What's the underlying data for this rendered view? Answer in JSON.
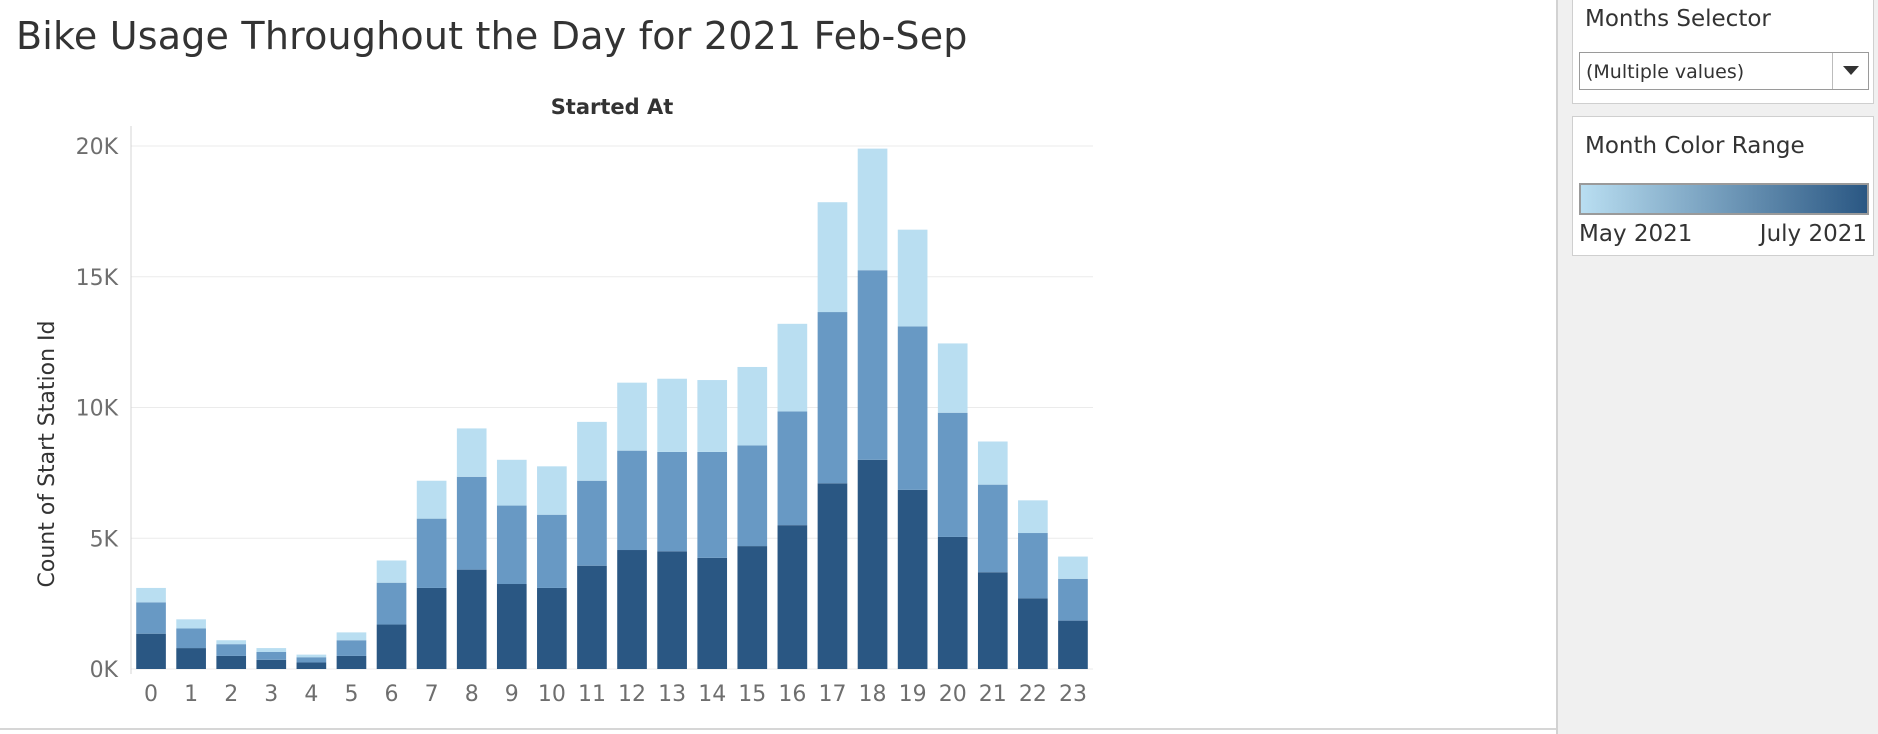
{
  "title": "Bike Usage Throughout the Day for 2021 Feb-Sep",
  "months_selector": {
    "title": "Months Selector",
    "value": "(Multiple values)"
  },
  "color_legend": {
    "title": "Month Color Range",
    "start_label": "May 2021",
    "end_label": "July 2021",
    "start_color": "#b9def1",
    "end_color": "#2a5783"
  },
  "chart_data": {
    "type": "bar",
    "stacked": true,
    "title": "Started At",
    "xlabel": "",
    "ylabel": "Count of Start Station Id",
    "ylim": [
      0,
      20000
    ],
    "y_ticks": [
      0,
      5000,
      10000,
      15000,
      20000
    ],
    "y_tick_labels": [
      "0K",
      "5K",
      "10K",
      "15K",
      "20K"
    ],
    "grid": true,
    "categories": [
      "0",
      "1",
      "2",
      "3",
      "4",
      "5",
      "6",
      "7",
      "8",
      "9",
      "10",
      "11",
      "12",
      "13",
      "14",
      "15",
      "16",
      "17",
      "18",
      "19",
      "20",
      "21",
      "22",
      "23"
    ],
    "series": [
      {
        "color": "#2a5783",
        "values": [
          1350,
          800,
          500,
          350,
          250,
          500,
          1700,
          3100,
          3800,
          3250,
          3100,
          3950,
          4550,
          4500,
          4250,
          4700,
          5500,
          7100,
          8000,
          6850,
          5050,
          3700,
          2700,
          1850
        ]
      },
      {
        "color": "#6899c4",
        "values": [
          1200,
          750,
          450,
          300,
          200,
          600,
          1600,
          2650,
          3550,
          3000,
          2800,
          3250,
          3800,
          3800,
          4050,
          3850,
          4350,
          6550,
          7250,
          6250,
          4750,
          3350,
          2500,
          1600
        ]
      },
      {
        "color": "#b9def1",
        "values": [
          550,
          350,
          150,
          150,
          100,
          300,
          850,
          1450,
          1850,
          1750,
          1850,
          2250,
          2600,
          2800,
          2750,
          3000,
          3350,
          4200,
          4650,
          3700,
          2650,
          1650,
          1250,
          850
        ]
      }
    ]
  }
}
